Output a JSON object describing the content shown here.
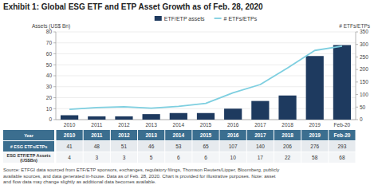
{
  "chart_data": {
    "type": "bar",
    "title": "Exhibit 1: Global ESG ETF and ETP Asset Growth as of Feb. 28, 2020",
    "categories": [
      "2010",
      "2011",
      "2012",
      "2013",
      "2014",
      "2015",
      "2016",
      "2017",
      "2018",
      "2019",
      "Feb-20"
    ],
    "series": [
      {
        "name": "ETF/ETP assets",
        "type": "bar",
        "color": "#1e3a5f",
        "values": [
          4,
          3,
          3,
          5,
          6,
          6,
          10,
          17,
          22,
          58,
          68
        ]
      },
      {
        "name": "# ETFs/ETPs",
        "type": "line",
        "axis": "y2",
        "color": "#7ecfe0",
        "values": [
          41,
          48,
          51,
          46,
          53,
          65,
          107,
          140,
          206,
          276,
          293
        ]
      }
    ],
    "y_label": "Assets (US$ Bn)",
    "y2_label": "# ETFs/ETPs",
    "ylim": [
      0,
      80
    ],
    "yticks": [
      0,
      10,
      20,
      30,
      40,
      50,
      60,
      70,
      80
    ],
    "y2lim": [
      0,
      350
    ],
    "y2ticks": [
      0,
      50,
      100,
      150,
      200,
      250,
      300,
      350
    ],
    "grid": true,
    "legend": "top",
    "table_row_labels": [
      "Year",
      "# ESG ETFs/ETPs",
      "ESG ETF/ETP Assets\n(US$Bn)"
    ],
    "source": "Source: ETFGI data sourced from ETF/ETP sponsors, exchanges, regulatory filings, Thomson Reuters/Lipper, Bloomberg, publicly\navailable sources, and data generated in-house. Data as of Feb. 28, 2020. Chart is provided for illustrative purposes. Note: asset\nand flow data may change slightly as additional data becomes available."
  }
}
